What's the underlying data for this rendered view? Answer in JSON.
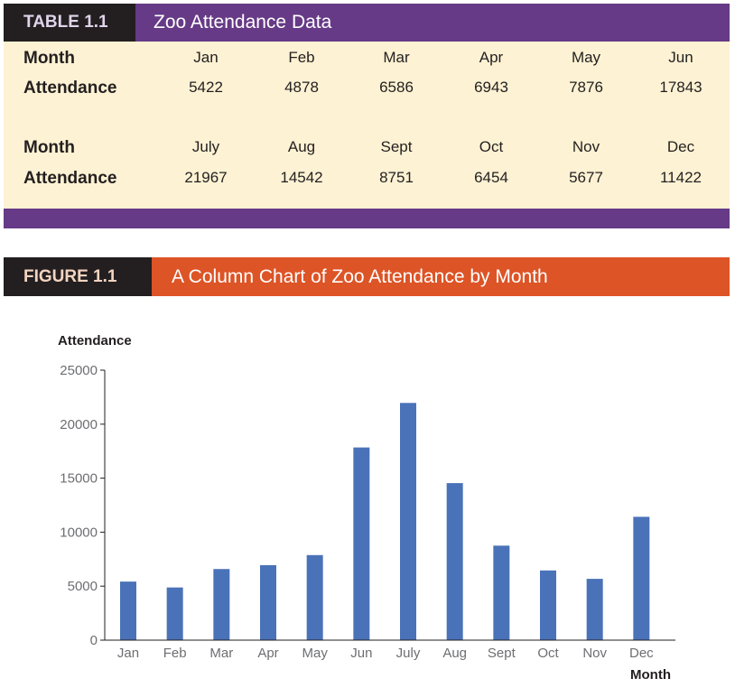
{
  "table": {
    "label": "TABLE 1.1",
    "title": "Zoo Attendance Data",
    "row_header_month": "Month",
    "row_header_attendance": "Attendance",
    "block1": {
      "months": [
        "Jan",
        "Feb",
        "Mar",
        "Apr",
        "May",
        "Jun"
      ],
      "attendance": [
        "5422",
        "4878",
        "6586",
        "6943",
        "7876",
        "17843"
      ]
    },
    "block2": {
      "months": [
        "July",
        "Aug",
        "Sept",
        "Oct",
        "Nov",
        "Dec"
      ],
      "attendance": [
        "21967",
        "14542",
        "8751",
        "6454",
        "5677",
        "11422"
      ]
    }
  },
  "figure": {
    "label": "FIGURE 1.1",
    "title": "A Column Chart of Zoo Attendance by Month"
  },
  "colors": {
    "table_label_bg": "#231f20",
    "table_title_bg": "#663a86",
    "table_body_bg": "#fdf2d3",
    "figure_title_bg": "#dd5426",
    "bar": "#4a72b8"
  },
  "chart_data": {
    "type": "bar",
    "title": "A Column Chart of Zoo Attendance by Month",
    "categories": [
      "Jan",
      "Feb",
      "Mar",
      "Apr",
      "May",
      "Jun",
      "July",
      "Aug",
      "Sept",
      "Oct",
      "Nov",
      "Dec"
    ],
    "values": [
      5422,
      4878,
      6586,
      6943,
      7876,
      17843,
      21967,
      14542,
      8751,
      6454,
      5677,
      11422
    ],
    "xlabel": "Month",
    "ylabel": "Attendance",
    "ylim": [
      0,
      25000
    ],
    "yticks": [
      0,
      5000,
      10000,
      15000,
      20000,
      25000
    ],
    "grid": false,
    "legend": "none"
  }
}
